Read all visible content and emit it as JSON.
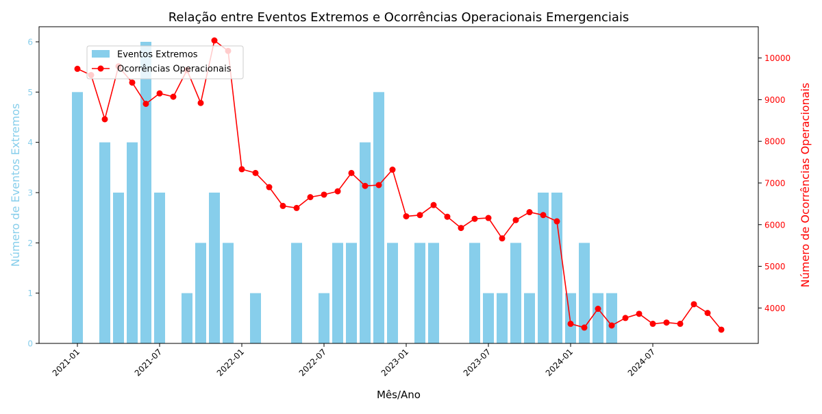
{
  "chart_data": {
    "type": "bar+line",
    "title": "Relação entre Eventos Extremos e Ocorrências Operacionais Emergenciais",
    "xlabel": "Mês/Ano",
    "ylabel_left": "Número de Eventos Extremos",
    "ylabel_right": "Número de Ocorrências Operacionais",
    "x_ticks": [
      "2021-01",
      "2021-07",
      "2022-01",
      "2022-07",
      "2023-01",
      "2023-07",
      "2024-01",
      "2024-07"
    ],
    "ylim_left": [
      0,
      6.3
    ],
    "yticks_left": [
      0,
      1,
      2,
      3,
      4,
      5,
      6
    ],
    "ylim_right": [
      3150,
      10750
    ],
    "yticks_right": [
      4000,
      5000,
      6000,
      7000,
      8000,
      9000,
      10000
    ],
    "legend_position": "upper-left",
    "colors": {
      "bars": "#87ceeb",
      "line": "#ff0000",
      "left_axis": "#87ceeb",
      "right_axis": "#ff0000"
    },
    "series": [
      {
        "name": "Eventos Extremos",
        "kind": "bar",
        "axis": "left",
        "points": [
          {
            "x": "2021-01",
            "y": 5
          },
          {
            "x": "2021-03",
            "y": 4
          },
          {
            "x": "2021-04",
            "y": 3
          },
          {
            "x": "2021-05",
            "y": 4
          },
          {
            "x": "2021-06",
            "y": 6
          },
          {
            "x": "2021-07",
            "y": 3
          },
          {
            "x": "2021-09",
            "y": 1
          },
          {
            "x": "2021-10",
            "y": 2
          },
          {
            "x": "2021-11",
            "y": 3
          },
          {
            "x": "2021-12",
            "y": 2
          },
          {
            "x": "2022-02",
            "y": 1
          },
          {
            "x": "2022-05",
            "y": 2
          },
          {
            "x": "2022-07",
            "y": 1
          },
          {
            "x": "2022-08",
            "y": 2
          },
          {
            "x": "2022-09",
            "y": 2
          },
          {
            "x": "2022-10",
            "y": 4
          },
          {
            "x": "2022-11",
            "y": 5
          },
          {
            "x": "2022-12",
            "y": 2
          },
          {
            "x": "2023-02",
            "y": 2
          },
          {
            "x": "2023-03",
            "y": 2
          },
          {
            "x": "2023-06",
            "y": 2
          },
          {
            "x": "2023-07",
            "y": 1
          },
          {
            "x": "2023-08",
            "y": 1
          },
          {
            "x": "2023-09",
            "y": 2
          },
          {
            "x": "2023-10",
            "y": 1
          },
          {
            "x": "2023-11",
            "y": 3
          },
          {
            "x": "2023-12",
            "y": 3
          },
          {
            "x": "2024-01",
            "y": 1
          },
          {
            "x": "2024-02",
            "y": 2
          },
          {
            "x": "2024-03",
            "y": 1
          },
          {
            "x": "2024-04",
            "y": 1
          }
        ]
      },
      {
        "name": "Ocorrências Operacionais",
        "kind": "line",
        "axis": "right",
        "points": [
          {
            "x": "2021-01",
            "y": 9740
          },
          {
            "x": "2021-02",
            "y": 9590
          },
          {
            "x": "2021-03",
            "y": 8530
          },
          {
            "x": "2021-04",
            "y": 9800
          },
          {
            "x": "2021-05",
            "y": 9410
          },
          {
            "x": "2021-06",
            "y": 8900
          },
          {
            "x": "2021-07",
            "y": 9150
          },
          {
            "x": "2021-08",
            "y": 9070
          },
          {
            "x": "2021-09",
            "y": 9710
          },
          {
            "x": "2021-10",
            "y": 8920
          },
          {
            "x": "2021-11",
            "y": 10420
          },
          {
            "x": "2021-12",
            "y": 10170
          },
          {
            "x": "2022-01",
            "y": 7330
          },
          {
            "x": "2022-02",
            "y": 7240
          },
          {
            "x": "2022-03",
            "y": 6900
          },
          {
            "x": "2022-04",
            "y": 6450
          },
          {
            "x": "2022-05",
            "y": 6400
          },
          {
            "x": "2022-06",
            "y": 6660
          },
          {
            "x": "2022-07",
            "y": 6720
          },
          {
            "x": "2022-08",
            "y": 6800
          },
          {
            "x": "2022-09",
            "y": 7240
          },
          {
            "x": "2022-10",
            "y": 6930
          },
          {
            "x": "2022-11",
            "y": 6950
          },
          {
            "x": "2022-12",
            "y": 7320
          },
          {
            "x": "2023-01",
            "y": 6200
          },
          {
            "x": "2023-02",
            "y": 6230
          },
          {
            "x": "2023-03",
            "y": 6470
          },
          {
            "x": "2023-04",
            "y": 6190
          },
          {
            "x": "2023-05",
            "y": 5920
          },
          {
            "x": "2023-06",
            "y": 6140
          },
          {
            "x": "2023-07",
            "y": 6160
          },
          {
            "x": "2023-08",
            "y": 5670
          },
          {
            "x": "2023-09",
            "y": 6110
          },
          {
            "x": "2023-10",
            "y": 6300
          },
          {
            "x": "2023-11",
            "y": 6230
          },
          {
            "x": "2023-12",
            "y": 6080
          },
          {
            "x": "2024-01",
            "y": 3620
          },
          {
            "x": "2024-02",
            "y": 3530
          },
          {
            "x": "2024-03",
            "y": 3980
          },
          {
            "x": "2024-04",
            "y": 3580
          },
          {
            "x": "2024-05",
            "y": 3760
          },
          {
            "x": "2024-06",
            "y": 3860
          },
          {
            "x": "2024-07",
            "y": 3620
          },
          {
            "x": "2024-08",
            "y": 3650
          },
          {
            "x": "2024-09",
            "y": 3620
          },
          {
            "x": "2024-10",
            "y": 4090
          },
          {
            "x": "2024-11",
            "y": 3880
          },
          {
            "x": "2024-12",
            "y": 3480
          }
        ]
      }
    ]
  }
}
